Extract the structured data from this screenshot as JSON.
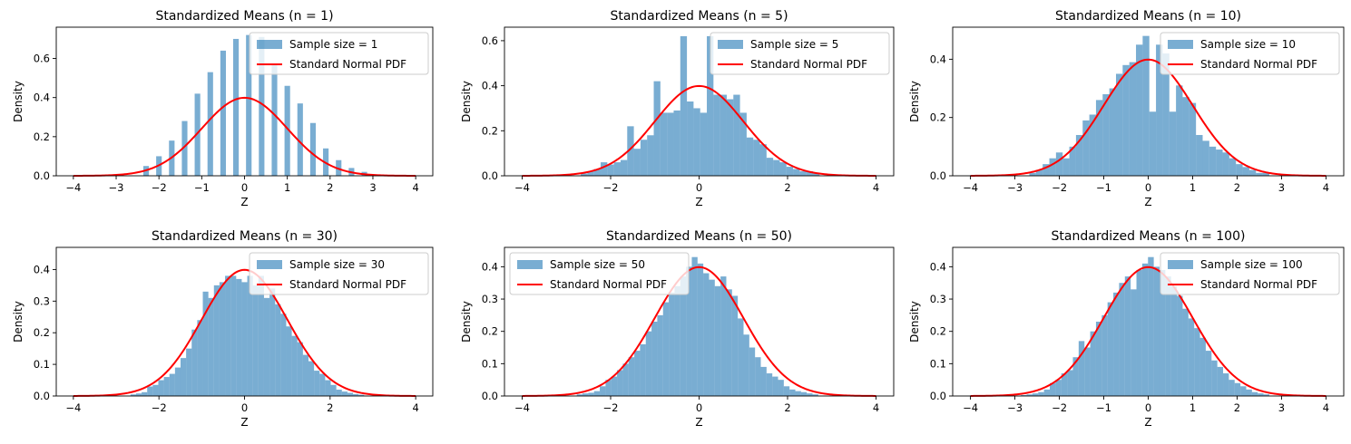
{
  "figure": {
    "background": "#ffffff"
  },
  "colors": {
    "hist": "#1f77b4",
    "hist_alpha": 0.6,
    "pdf": "#ff0000"
  },
  "chart_data": [
    {
      "type": "bar",
      "title": "Standardized Means (n = 1)",
      "xlabel": "Z",
      "ylabel": "Density",
      "xlim": [
        -4.4,
        4.4
      ],
      "ylim": [
        0,
        0.76
      ],
      "xticks": [
        -4,
        -3,
        -2,
        -1,
        0,
        1,
        2,
        3,
        4
      ],
      "yticks": [
        0.0,
        0.2,
        0.4,
        0.6
      ],
      "legend": {
        "loc": "upper right",
        "entries": [
          "Sample size = 1",
          "Standard Normal PDF"
        ]
      },
      "hist": {
        "name": "Sample size = 1",
        "bin_width": 0.13,
        "bars": [
          [
            -2.3,
            0.05
          ],
          [
            -2.0,
            0.1
          ],
          [
            -1.7,
            0.18
          ],
          [
            -1.4,
            0.28
          ],
          [
            -1.1,
            0.42
          ],
          [
            -0.8,
            0.53
          ],
          [
            -0.5,
            0.64
          ],
          [
            -0.2,
            0.7
          ],
          [
            0.1,
            0.72
          ],
          [
            0.4,
            0.71
          ],
          [
            0.7,
            0.57
          ],
          [
            1.0,
            0.46
          ],
          [
            1.3,
            0.37
          ],
          [
            1.6,
            0.27
          ],
          [
            1.9,
            0.14
          ],
          [
            2.2,
            0.08
          ],
          [
            2.5,
            0.04
          ],
          [
            2.8,
            0.02
          ]
        ]
      },
      "pdf": {
        "name": "Standard Normal PDF",
        "x_range": [
          -4,
          4
        ]
      }
    },
    {
      "type": "bar",
      "title": "Standardized Means (n = 5)",
      "xlabel": "Z",
      "ylabel": "Density",
      "xlim": [
        -4.4,
        4.4
      ],
      "ylim": [
        0,
        0.66
      ],
      "xticks": [
        -4,
        -2,
        0,
        2,
        4
      ],
      "yticks": [
        0.0,
        0.2,
        0.4,
        0.6
      ],
      "legend": {
        "loc": "upper right",
        "entries": [
          "Sample size = 5",
          "Standard Normal PDF"
        ]
      },
      "hist": {
        "name": "Sample size = 5",
        "bin_width": 0.15,
        "bars": [
          [
            -2.6,
            0.01
          ],
          [
            -2.45,
            0.02
          ],
          [
            -2.3,
            0.03
          ],
          [
            -2.15,
            0.06
          ],
          [
            -2.0,
            0.05
          ],
          [
            -1.85,
            0.06
          ],
          [
            -1.7,
            0.07
          ],
          [
            -1.55,
            0.22
          ],
          [
            -1.4,
            0.12
          ],
          [
            -1.25,
            0.16
          ],
          [
            -1.1,
            0.18
          ],
          [
            -0.95,
            0.42
          ],
          [
            -0.8,
            0.28
          ],
          [
            -0.65,
            0.28
          ],
          [
            -0.5,
            0.29
          ],
          [
            -0.35,
            0.62
          ],
          [
            -0.2,
            0.33
          ],
          [
            -0.05,
            0.3
          ],
          [
            0.1,
            0.28
          ],
          [
            0.25,
            0.62
          ],
          [
            0.4,
            0.36
          ],
          [
            0.55,
            0.36
          ],
          [
            0.7,
            0.34
          ],
          [
            0.85,
            0.36
          ],
          [
            1.0,
            0.28
          ],
          [
            1.15,
            0.17
          ],
          [
            1.3,
            0.16
          ],
          [
            1.45,
            0.14
          ],
          [
            1.6,
            0.08
          ],
          [
            1.75,
            0.07
          ],
          [
            1.9,
            0.06
          ],
          [
            2.05,
            0.04
          ],
          [
            2.2,
            0.03
          ],
          [
            2.35,
            0.02
          ],
          [
            2.5,
            0.02
          ],
          [
            2.65,
            0.01
          ]
        ]
      },
      "pdf": {
        "name": "Standard Normal PDF",
        "x_range": [
          -4,
          4
        ]
      }
    },
    {
      "type": "bar",
      "title": "Standardized Means (n = 10)",
      "xlabel": "Z",
      "ylabel": "Density",
      "xlim": [
        -4.4,
        4.4
      ],
      "ylim": [
        0,
        0.51
      ],
      "xticks": [
        -4,
        -3,
        -2,
        -1,
        0,
        1,
        2,
        3,
        4
      ],
      "yticks": [
        0.0,
        0.2,
        0.4
      ],
      "legend": {
        "loc": "upper right",
        "entries": [
          "Sample size = 10",
          "Standard Normal PDF"
        ]
      },
      "hist": {
        "name": "Sample size = 10",
        "bin_width": 0.15,
        "bars": [
          [
            -2.6,
            0.01
          ],
          [
            -2.45,
            0.02
          ],
          [
            -2.3,
            0.04
          ],
          [
            -2.15,
            0.06
          ],
          [
            -2.0,
            0.08
          ],
          [
            -1.85,
            0.06
          ],
          [
            -1.7,
            0.1
          ],
          [
            -1.55,
            0.14
          ],
          [
            -1.4,
            0.19
          ],
          [
            -1.25,
            0.21
          ],
          [
            -1.1,
            0.26
          ],
          [
            -0.95,
            0.28
          ],
          [
            -0.8,
            0.3
          ],
          [
            -0.65,
            0.35
          ],
          [
            -0.5,
            0.38
          ],
          [
            -0.35,
            0.39
          ],
          [
            -0.2,
            0.45
          ],
          [
            -0.05,
            0.48
          ],
          [
            0.1,
            0.22
          ],
          [
            0.25,
            0.45
          ],
          [
            0.4,
            0.42
          ],
          [
            0.55,
            0.22
          ],
          [
            0.7,
            0.31
          ],
          [
            0.85,
            0.27
          ],
          [
            1.0,
            0.25
          ],
          [
            1.15,
            0.14
          ],
          [
            1.3,
            0.12
          ],
          [
            1.45,
            0.1
          ],
          [
            1.6,
            0.09
          ],
          [
            1.75,
            0.08
          ],
          [
            1.9,
            0.06
          ],
          [
            2.05,
            0.04
          ],
          [
            2.2,
            0.03
          ],
          [
            2.35,
            0.02
          ],
          [
            2.5,
            0.01
          ],
          [
            2.65,
            0.01
          ]
        ]
      },
      "pdf": {
        "name": "Standard Normal PDF",
        "x_range": [
          -4,
          4
        ]
      }
    },
    {
      "type": "bar",
      "title": "Standardized Means (n = 30)",
      "xlabel": "Z",
      "ylabel": "Density",
      "xlim": [
        -4.4,
        4.4
      ],
      "ylim": [
        0,
        0.47
      ],
      "xticks": [
        -4,
        -2,
        0,
        2,
        4
      ],
      "yticks": [
        0.0,
        0.1,
        0.2,
        0.3,
        0.4
      ],
      "legend": {
        "loc": "upper right",
        "entries": [
          "Sample size = 30",
          "Standard Normal PDF"
        ]
      },
      "hist": {
        "name": "Sample size = 30",
        "bin_width": 0.13,
        "bars": [
          [
            -2.6,
            0.005
          ],
          [
            -2.47,
            0.008
          ],
          [
            -2.34,
            0.012
          ],
          [
            -2.21,
            0.03
          ],
          [
            -2.08,
            0.035
          ],
          [
            -1.95,
            0.05
          ],
          [
            -1.82,
            0.06
          ],
          [
            -1.69,
            0.07
          ],
          [
            -1.56,
            0.09
          ],
          [
            -1.43,
            0.12
          ],
          [
            -1.3,
            0.15
          ],
          [
            -1.17,
            0.21
          ],
          [
            -1.04,
            0.24
          ],
          [
            -0.91,
            0.33
          ],
          [
            -0.78,
            0.31
          ],
          [
            -0.65,
            0.35
          ],
          [
            -0.52,
            0.36
          ],
          [
            -0.39,
            0.38
          ],
          [
            -0.26,
            0.38
          ],
          [
            -0.13,
            0.37
          ],
          [
            0.0,
            0.36
          ],
          [
            0.13,
            0.38
          ],
          [
            0.26,
            0.35
          ],
          [
            0.39,
            0.38
          ],
          [
            0.52,
            0.31
          ],
          [
            0.65,
            0.34
          ],
          [
            0.78,
            0.29
          ],
          [
            0.91,
            0.26
          ],
          [
            1.04,
            0.22
          ],
          [
            1.17,
            0.19
          ],
          [
            1.3,
            0.17
          ],
          [
            1.43,
            0.13
          ],
          [
            1.56,
            0.11
          ],
          [
            1.69,
            0.08
          ],
          [
            1.82,
            0.07
          ],
          [
            1.95,
            0.05
          ],
          [
            2.08,
            0.035
          ],
          [
            2.21,
            0.02
          ],
          [
            2.34,
            0.014
          ],
          [
            2.47,
            0.01
          ],
          [
            2.6,
            0.006
          ],
          [
            2.73,
            0.004
          ]
        ]
      },
      "pdf": {
        "name": "Standard Normal PDF",
        "x_range": [
          -4,
          4
        ]
      }
    },
    {
      "type": "bar",
      "title": "Standardized Means (n = 50)",
      "xlabel": "Z",
      "ylabel": "Density",
      "xlim": [
        -4.4,
        4.4
      ],
      "ylim": [
        0,
        0.46
      ],
      "xticks": [
        -4,
        -2,
        0,
        2,
        4
      ],
      "yticks": [
        0.0,
        0.1,
        0.2,
        0.3,
        0.4
      ],
      "legend": {
        "loc": "upper left",
        "entries": [
          "Sample size = 50",
          "Standard Normal PDF"
        ]
      },
      "hist": {
        "name": "Sample size = 50",
        "bin_width": 0.13,
        "bars": [
          [
            -2.7,
            0.005
          ],
          [
            -2.57,
            0.008
          ],
          [
            -2.44,
            0.01
          ],
          [
            -2.31,
            0.015
          ],
          [
            -2.18,
            0.03
          ],
          [
            -2.05,
            0.05
          ],
          [
            -1.92,
            0.06
          ],
          [
            -1.79,
            0.08
          ],
          [
            -1.66,
            0.1
          ],
          [
            -1.53,
            0.12
          ],
          [
            -1.4,
            0.14
          ],
          [
            -1.27,
            0.16
          ],
          [
            -1.14,
            0.2
          ],
          [
            -1.01,
            0.23
          ],
          [
            -0.88,
            0.25
          ],
          [
            -0.75,
            0.29
          ],
          [
            -0.62,
            0.32
          ],
          [
            -0.49,
            0.34
          ],
          [
            -0.36,
            0.37
          ],
          [
            -0.23,
            0.4
          ],
          [
            -0.1,
            0.43
          ],
          [
            0.03,
            0.41
          ],
          [
            0.16,
            0.38
          ],
          [
            0.29,
            0.36
          ],
          [
            0.42,
            0.34
          ],
          [
            0.55,
            0.37
          ],
          [
            0.68,
            0.33
          ],
          [
            0.81,
            0.31
          ],
          [
            0.94,
            0.24
          ],
          [
            1.07,
            0.19
          ],
          [
            1.2,
            0.15
          ],
          [
            1.33,
            0.12
          ],
          [
            1.46,
            0.09
          ],
          [
            1.59,
            0.07
          ],
          [
            1.72,
            0.06
          ],
          [
            1.85,
            0.05
          ],
          [
            1.98,
            0.03
          ],
          [
            2.11,
            0.02
          ],
          [
            2.24,
            0.015
          ],
          [
            2.37,
            0.012
          ],
          [
            2.5,
            0.008
          ],
          [
            2.63,
            0.005
          ]
        ]
      },
      "pdf": {
        "name": "Standard Normal PDF",
        "x_range": [
          -4,
          4
        ]
      }
    },
    {
      "type": "bar",
      "title": "Standardized Means (n = 100)",
      "xlabel": "Z",
      "ylabel": "Density",
      "xlim": [
        -4.4,
        4.4
      ],
      "ylim": [
        0,
        0.46
      ],
      "xticks": [
        -4,
        -3,
        -2,
        -1,
        0,
        1,
        2,
        3,
        4
      ],
      "yticks": [
        0.0,
        0.1,
        0.2,
        0.3,
        0.4
      ],
      "legend": {
        "loc": "upper right",
        "entries": [
          "Sample size = 100",
          "Standard Normal PDF"
        ]
      },
      "hist": {
        "name": "Sample size = 100",
        "bin_width": 0.13,
        "bars": [
          [
            -2.8,
            0.003
          ],
          [
            -2.67,
            0.005
          ],
          [
            -2.54,
            0.008
          ],
          [
            -2.41,
            0.012
          ],
          [
            -2.28,
            0.02
          ],
          [
            -2.15,
            0.04
          ],
          [
            -2.02,
            0.05
          ],
          [
            -1.89,
            0.07
          ],
          [
            -1.76,
            0.08
          ],
          [
            -1.63,
            0.12
          ],
          [
            -1.5,
            0.17
          ],
          [
            -1.37,
            0.15
          ],
          [
            -1.24,
            0.2
          ],
          [
            -1.11,
            0.23
          ],
          [
            -0.98,
            0.25
          ],
          [
            -0.85,
            0.29
          ],
          [
            -0.72,
            0.32
          ],
          [
            -0.59,
            0.35
          ],
          [
            -0.46,
            0.37
          ],
          [
            -0.33,
            0.33
          ],
          [
            -0.2,
            0.39
          ],
          [
            -0.07,
            0.41
          ],
          [
            0.06,
            0.43
          ],
          [
            0.19,
            0.4
          ],
          [
            0.32,
            0.39
          ],
          [
            0.45,
            0.37
          ],
          [
            0.58,
            0.34
          ],
          [
            0.71,
            0.31
          ],
          [
            0.84,
            0.27
          ],
          [
            0.97,
            0.24
          ],
          [
            1.1,
            0.21
          ],
          [
            1.23,
            0.18
          ],
          [
            1.36,
            0.14
          ],
          [
            1.49,
            0.11
          ],
          [
            1.62,
            0.09
          ],
          [
            1.75,
            0.07
          ],
          [
            1.88,
            0.05
          ],
          [
            2.01,
            0.04
          ],
          [
            2.14,
            0.03
          ],
          [
            2.27,
            0.02
          ],
          [
            2.4,
            0.012
          ],
          [
            2.53,
            0.008
          ],
          [
            2.66,
            0.005
          ]
        ]
      },
      "pdf": {
        "name": "Standard Normal PDF",
        "x_range": [
          -4,
          4
        ]
      }
    }
  ]
}
